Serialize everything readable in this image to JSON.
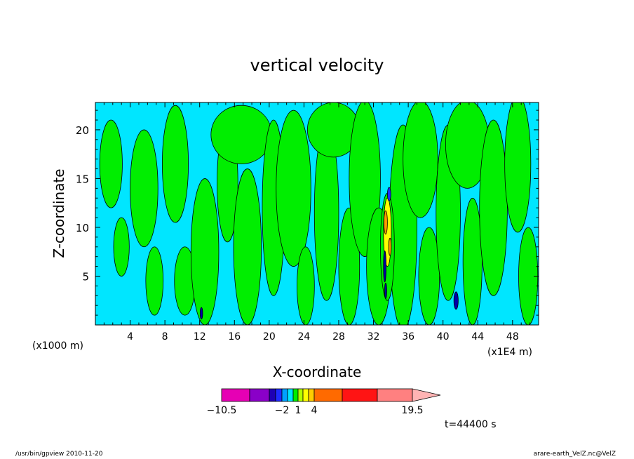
{
  "chart_data": {
    "type": "heatmap",
    "title": "vertical velocity",
    "xlabel": "X-coordinate",
    "ylabel": "Z-coordinate",
    "x_unit": "(x1E4 m)",
    "y_unit": "(x1000 m)",
    "xlim": [
      0,
      51
    ],
    "ylim": [
      0,
      22.8
    ],
    "x_ticks": [
      4,
      8,
      12,
      16,
      20,
      24,
      28,
      32,
      36,
      40,
      44,
      48
    ],
    "y_ticks": [
      5,
      10,
      15,
      20
    ],
    "x_tick_labels": [
      "4",
      "8",
      "12",
      "16",
      "20",
      "24",
      "28",
      "32",
      "36",
      "40",
      "44",
      "48"
    ],
    "y_tick_labels": [
      "5",
      "10",
      "15",
      "20"
    ],
    "background_color": "#00e6ff",
    "positive_color": "#00ee00",
    "green_regions": [
      {
        "x": 1.8,
        "z": 16.5,
        "rx": 1.3,
        "rz": 4.5
      },
      {
        "x": 3.0,
        "z": 8.0,
        "rx": 0.9,
        "rz": 3.0
      },
      {
        "x": 5.6,
        "z": 14.0,
        "rx": 1.6,
        "rz": 6.0
      },
      {
        "x": 6.8,
        "z": 4.5,
        "rx": 1.0,
        "rz": 3.5
      },
      {
        "x": 9.2,
        "z": 16.5,
        "rx": 1.5,
        "rz": 6.0
      },
      {
        "x": 10.3,
        "z": 4.5,
        "rx": 1.2,
        "rz": 3.5
      },
      {
        "x": 12.6,
        "z": 7.5,
        "rx": 1.6,
        "rz": 7.5
      },
      {
        "x": 15.2,
        "z": 14.5,
        "rx": 1.2,
        "rz": 6.0
      },
      {
        "x": 16.8,
        "z": 19.5,
        "rx": 3.5,
        "rz": 3.0
      },
      {
        "x": 17.5,
        "z": 8.0,
        "rx": 1.6,
        "rz": 8.0
      },
      {
        "x": 20.5,
        "z": 12.0,
        "rx": 1.3,
        "rz": 9.0
      },
      {
        "x": 22.8,
        "z": 14.0,
        "rx": 2.0,
        "rz": 8.0
      },
      {
        "x": 24.2,
        "z": 4.0,
        "rx": 1.0,
        "rz": 4.0
      },
      {
        "x": 26.6,
        "z": 11.5,
        "rx": 1.4,
        "rz": 9.0
      },
      {
        "x": 27.4,
        "z": 20.0,
        "rx": 3.0,
        "rz": 2.8
      },
      {
        "x": 29.2,
        "z": 6.0,
        "rx": 1.2,
        "rz": 6.0
      },
      {
        "x": 31.0,
        "z": 15.0,
        "rx": 1.8,
        "rz": 8.0
      },
      {
        "x": 32.6,
        "z": 6.0,
        "rx": 1.4,
        "rz": 6.0
      },
      {
        "x": 35.4,
        "z": 10.0,
        "rx": 1.6,
        "rz": 10.5
      },
      {
        "x": 37.4,
        "z": 17.0,
        "rx": 2.0,
        "rz": 6.0
      },
      {
        "x": 38.4,
        "z": 5.0,
        "rx": 1.2,
        "rz": 5.0
      },
      {
        "x": 40.6,
        "z": 11.5,
        "rx": 1.4,
        "rz": 9.0
      },
      {
        "x": 42.8,
        "z": 18.5,
        "rx": 2.5,
        "rz": 4.5
      },
      {
        "x": 43.4,
        "z": 6.5,
        "rx": 1.1,
        "rz": 6.5
      },
      {
        "x": 45.8,
        "z": 12.0,
        "rx": 1.6,
        "rz": 9.0
      },
      {
        "x": 48.6,
        "z": 16.5,
        "rx": 1.5,
        "rz": 7.0
      },
      {
        "x": 49.8,
        "z": 5.0,
        "rx": 1.1,
        "rz": 5.0
      }
    ],
    "core_regions": [
      {
        "x": 33.6,
        "z": 8.0,
        "rx": 0.8,
        "rz": 5.5,
        "color": "#00ee00"
      },
      {
        "x": 33.6,
        "z": 9.5,
        "rx": 0.45,
        "rz": 3.5,
        "color": "#ffff00"
      },
      {
        "x": 33.4,
        "z": 10.5,
        "rx": 0.2,
        "rz": 1.2,
        "color": "#ff9900"
      },
      {
        "x": 33.9,
        "z": 8.0,
        "rx": 0.15,
        "rz": 0.9,
        "color": "#ff9900"
      },
      {
        "x": 33.3,
        "z": 6.0,
        "rx": 0.15,
        "rz": 1.6,
        "color": "#0000aa"
      },
      {
        "x": 33.8,
        "z": 13.4,
        "rx": 0.2,
        "rz": 0.7,
        "color": "#1e2aff"
      },
      {
        "x": 33.4,
        "z": 3.5,
        "rx": 0.12,
        "rz": 0.8,
        "color": "#0000aa"
      },
      {
        "x": 41.5,
        "z": 2.5,
        "rx": 0.25,
        "rz": 0.9,
        "color": "#0000aa"
      },
      {
        "x": 12.2,
        "z": 1.2,
        "rx": 0.15,
        "rz": 0.6,
        "color": "#0000aa"
      }
    ],
    "colorbar": {
      "levels": [
        -10.5,
        -7.5,
        -4.5,
        -3,
        -2,
        -1,
        0,
        1,
        2,
        3,
        4,
        7.5,
        11.5,
        15.5,
        19.5
      ],
      "colors": [
        "#e600b4",
        "#8a00c8",
        "#1e00b4",
        "#1e2aff",
        "#00a0ff",
        "#00e6ff",
        "#00ee00",
        "#b4ff00",
        "#ffff00",
        "#ffcc00",
        "#ff6a00",
        "#ff1414",
        "#ff8080"
      ],
      "extend_color": "#ffb4b4",
      "tick_labels": [
        {
          "value": -10.5,
          "label": "−10.5"
        },
        {
          "value": -2,
          "label": "−2"
        },
        {
          "value": 1,
          "label": "1"
        },
        {
          "value": 4,
          "label": "4"
        },
        {
          "value": 19.5,
          "label": "19.5"
        }
      ]
    },
    "time_label": "t=44400 s"
  },
  "footer": {
    "left": "/usr/bin/gpview   2010-11-20",
    "right": "arare-earth_VelZ.nc@VelZ"
  }
}
